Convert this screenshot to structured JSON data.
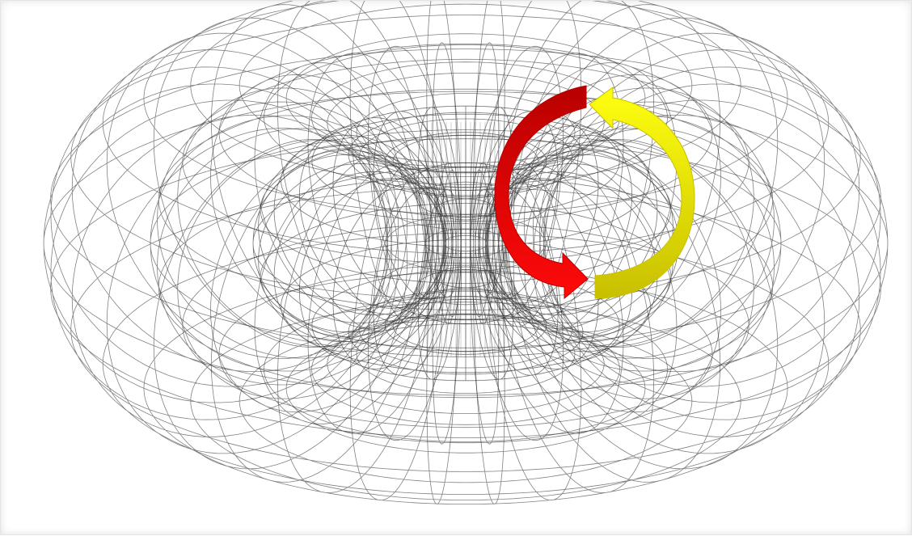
{
  "figure": {
    "subject": "nested-wireframe-tori",
    "shell_count": 3,
    "view": "oblique-perspective",
    "annotation": "circular-flow-arrows"
  },
  "colors": {
    "background": "#ffffff",
    "wireframe": "#1a1a1a",
    "arrow_red": "#ff0a0a",
    "arrow_red_dark": "#b80000",
    "arrow_yellow": "#ffff10",
    "arrow_yellow_dark": "#c8c000"
  }
}
